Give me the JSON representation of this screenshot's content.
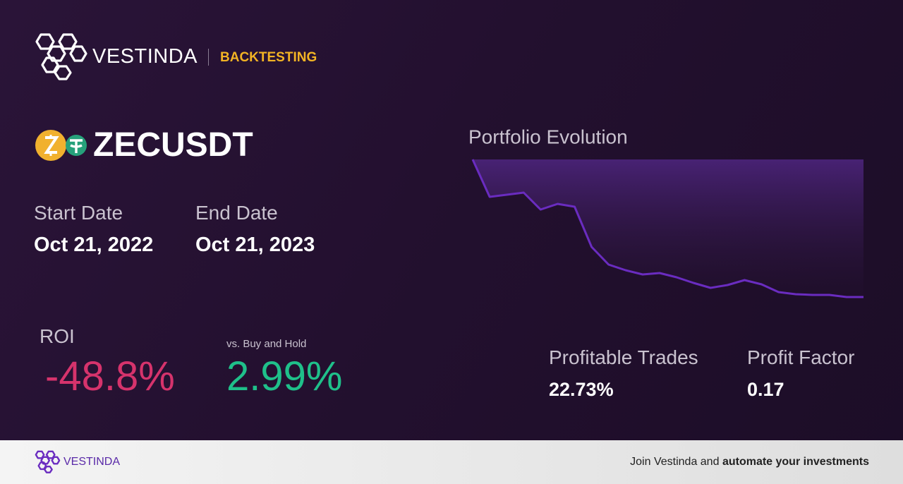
{
  "header": {
    "brand": "VESTINDA",
    "section": "BACKTESTING"
  },
  "pair": "ZECUSDT",
  "start": {
    "label": "Start Date",
    "value": "Oct 21, 2022"
  },
  "end": {
    "label": "End Date",
    "value": "Oct 21, 2023"
  },
  "roi": {
    "label": "ROI",
    "value": "-48.8%"
  },
  "vs_buy_hold": {
    "label": "vs. Buy and Hold",
    "value": "2.99%"
  },
  "profitable_trades": {
    "label": "Profitable Trades",
    "value": "22.73%"
  },
  "profit_factor": {
    "label": "Profit Factor",
    "value": "0.17"
  },
  "chart_data": {
    "type": "area",
    "title": "Portfolio Evolution",
    "color": "#6a2cc0",
    "values": [
      100,
      86.75,
      87.5,
      88.25,
      82.25,
      84.25,
      83.25,
      69,
      62.75,
      60.75,
      59.25,
      59.75,
      58.25,
      56.25,
      54.5,
      55.5,
      57.25,
      55.75,
      53,
      52.25,
      52,
      52,
      51.25,
      51.25
    ],
    "ylim": [
      50,
      100
    ]
  },
  "footer": {
    "brand": "VESTINDA",
    "cta": [
      "Join Vestinda and",
      "automate your investments"
    ]
  }
}
